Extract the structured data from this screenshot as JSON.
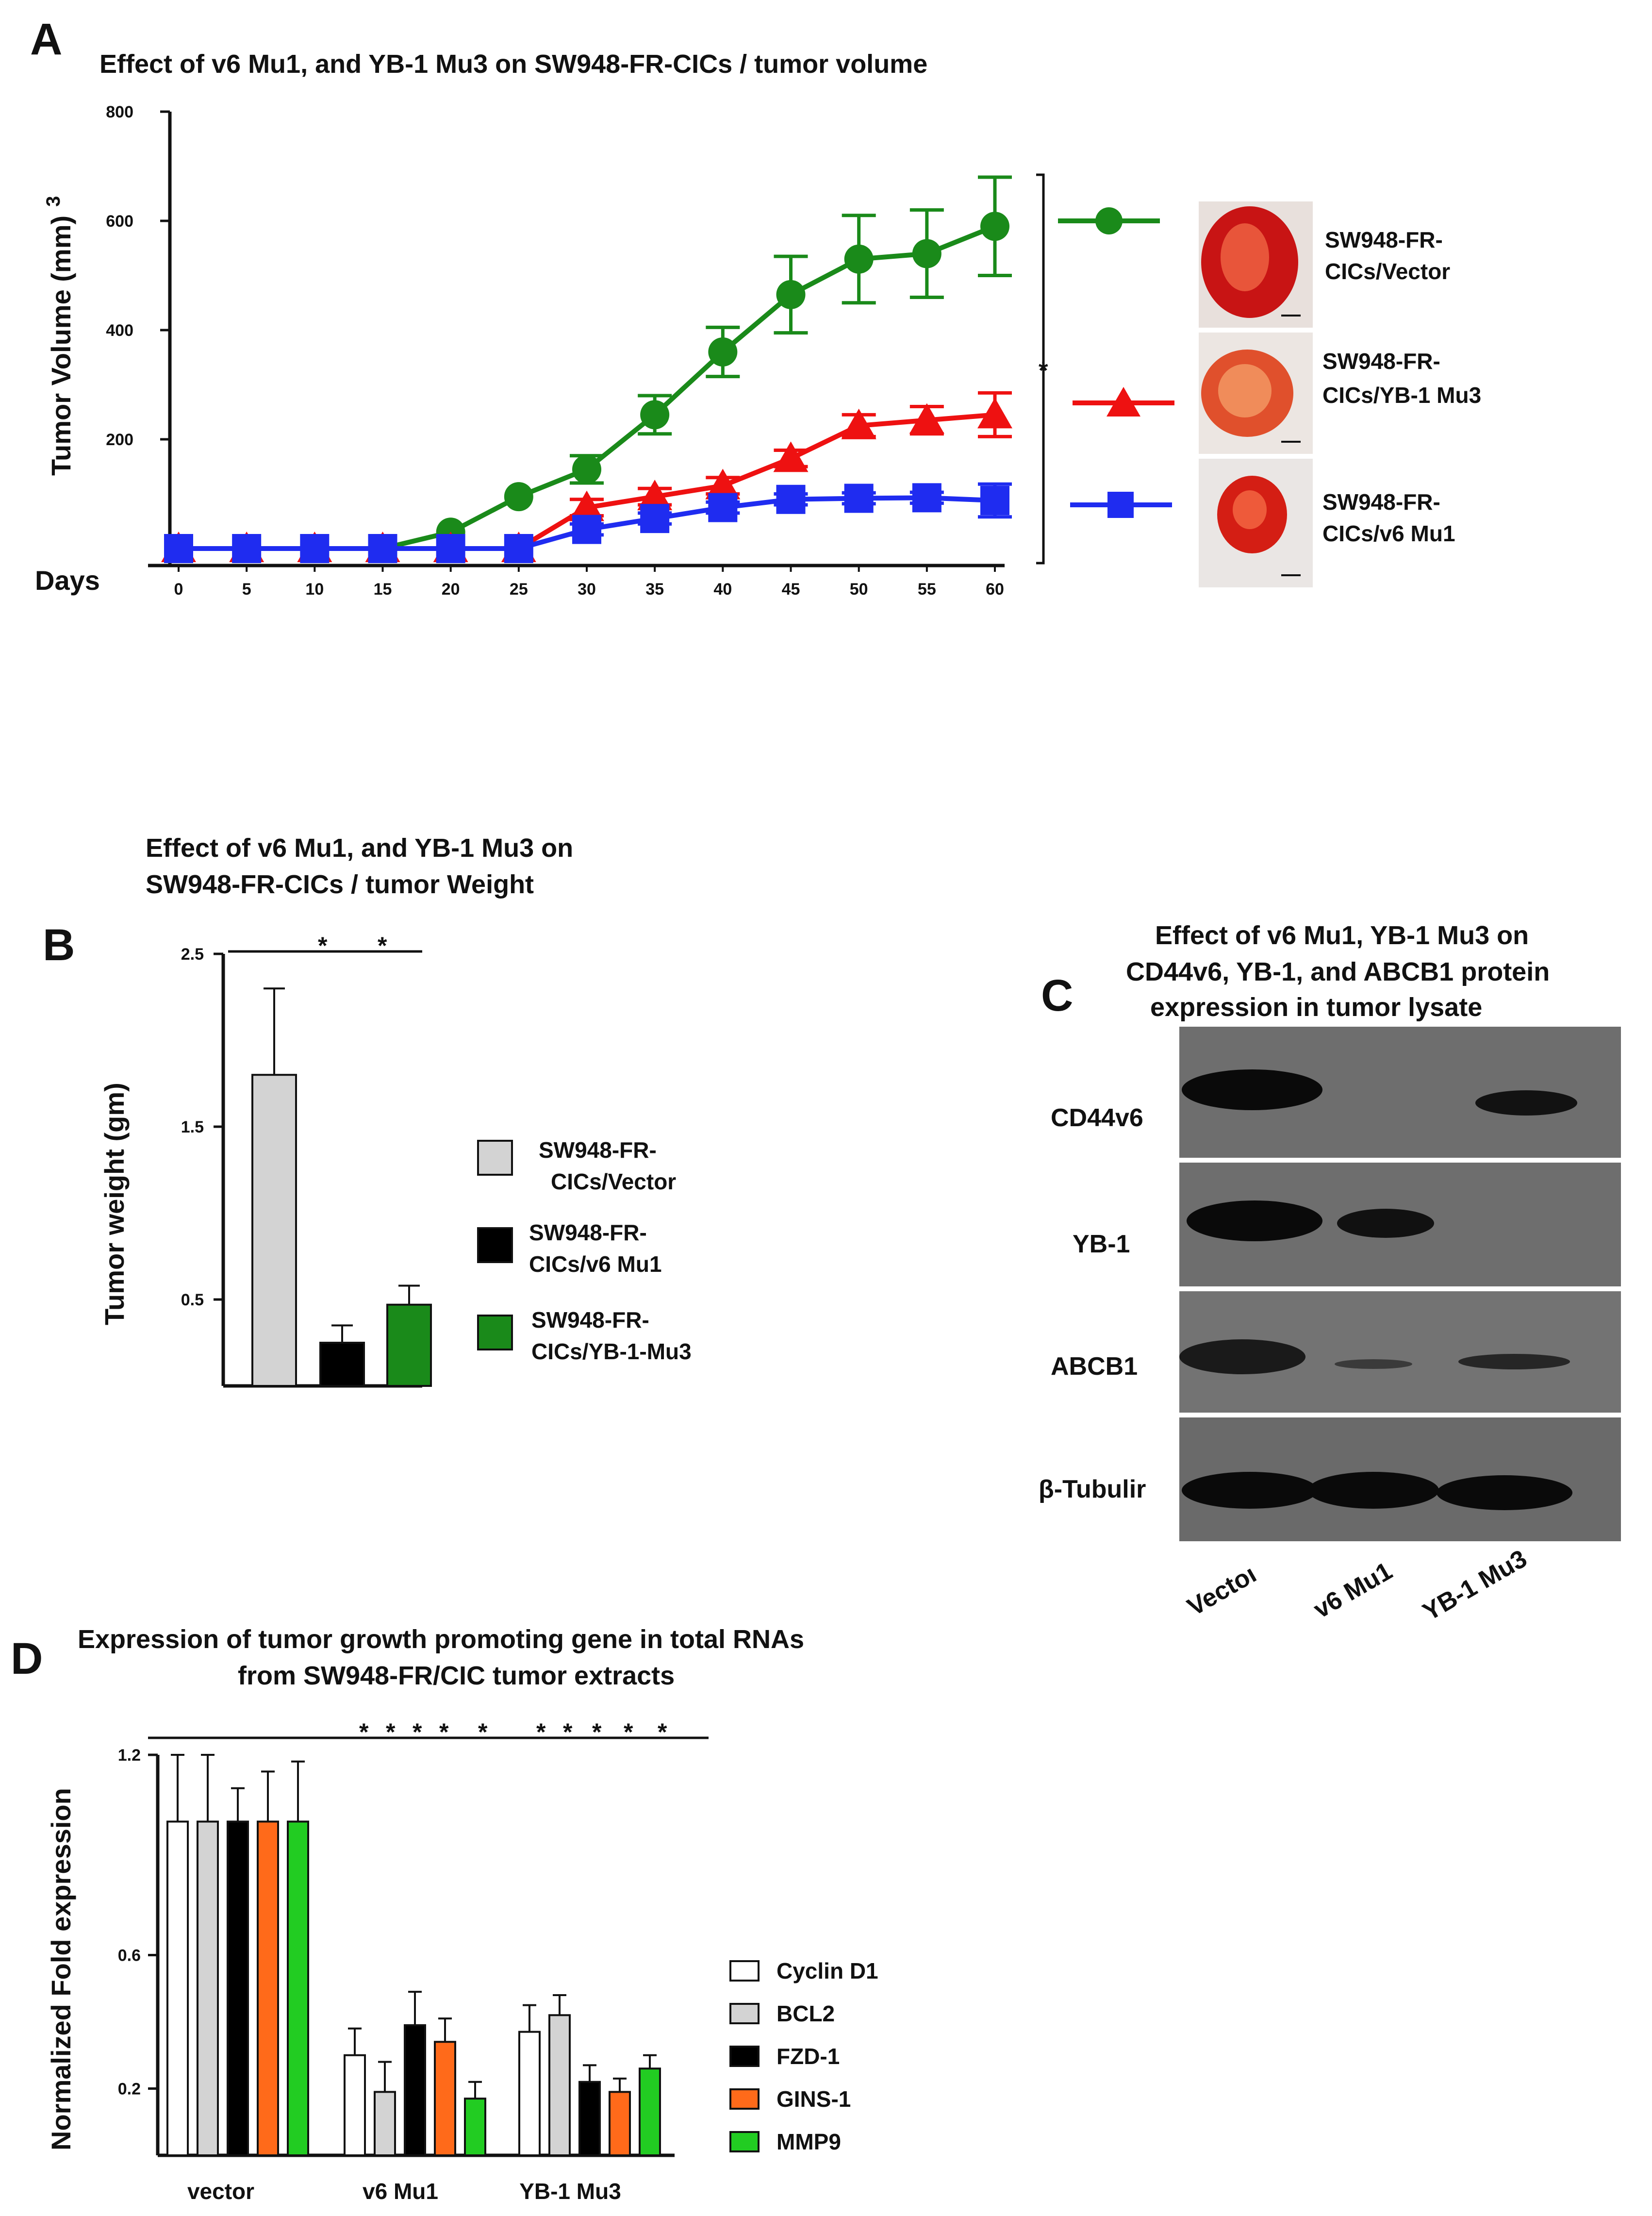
{
  "panels": {
    "a": "A",
    "b": "B",
    "c": "C",
    "d": "D"
  },
  "chart_data": [
    {
      "type": "line",
      "title": "Effect of v6 Mu1, and YB-1 Mu3 on SW948-FR-CICs  / tumor volume",
      "xlabel": "Days",
      "ylabel": "Tumor Volume (mm)",
      "ylabel_sup": "3",
      "x": [
        0,
        5,
        10,
        15,
        20,
        25,
        30,
        35,
        40,
        45,
        50,
        55,
        60
      ],
      "ytick_labels": [
        "200",
        "400",
        "600",
        "800"
      ],
      "ylim": [
        0,
        800
      ],
      "series": [
        {
          "name": "SW948-FR-CICs/Vector",
          "line1": "SW948-FR-",
          "line2": "CICs/Vector",
          "color": "#1a8a1a",
          "marker": "circle",
          "values": [
            0,
            0,
            0,
            0,
            30,
            95,
            145,
            245,
            360,
            465,
            530,
            540,
            590
          ],
          "errors": [
            0,
            0,
            0,
            0,
            0,
            0,
            25,
            35,
            45,
            70,
            80,
            80,
            90
          ]
        },
        {
          "name": "SW948-FR-CICs/YB-1 Mu3",
          "line1": "SW948-FR-",
          "line2": "CICs/YB-1  Mu3",
          "color": "#ee1111",
          "marker": "triangle",
          "values": [
            0,
            0,
            0,
            0,
            0,
            0,
            75,
            95,
            115,
            165,
            225,
            235,
            245
          ],
          "errors": [
            0,
            0,
            0,
            0,
            0,
            0,
            15,
            15,
            15,
            15,
            20,
            25,
            40
          ]
        },
        {
          "name": "SW948-FR-CICs/v6 Mu1",
          "line1": "SW948-FR-",
          "line2": "CICs/v6  Mu1",
          "color": "#1f2cf0",
          "marker": "square",
          "values": [
            0,
            0,
            0,
            0,
            0,
            0,
            35,
            55,
            75,
            90,
            92,
            93,
            88
          ],
          "errors": [
            0,
            0,
            0,
            0,
            0,
            0,
            10,
            10,
            10,
            10,
            10,
            10,
            30
          ]
        }
      ],
      "significance": "*"
    },
    {
      "type": "bar",
      "title_line1": "Effect  of v6 Mu1, and YB-1  Mu3 on",
      "title_line2": "SW948-FR-CICs  / tumor Weight",
      "ylabel": "Tumor weight (gm)",
      "ytick_labels": [
        "0.5",
        "1.5",
        "2.5"
      ],
      "ylim": [
        0,
        2.5
      ],
      "categories": [
        "SW948-FR-CICs/Vector",
        "SW948-FR-CICs/v6 Mu1",
        "SW948-FR-CICs/YB-1-Mu3"
      ],
      "values": [
        1.8,
        0.25,
        0.47
      ],
      "errors": [
        0.5,
        0.1,
        0.11
      ],
      "colors": [
        "#d3d3d3",
        "#000000",
        "#1a8a1a"
      ],
      "legend": [
        {
          "line1": "SW948-FR-",
          "line2": "CICs/Vector"
        },
        {
          "line1": "SW948-FR-",
          "line2": "CICs/v6  Mu1"
        },
        {
          "line1": "SW948-FR-",
          "line2": "CICs/YB-1-Mu3"
        }
      ],
      "stars": [
        "*",
        "*"
      ]
    },
    {
      "type": "bar",
      "title_line1": "Expression  of tumor growth promoting gene in total RNAs",
      "title_line2": "from  SW948-FR/CIC tumor extracts",
      "ylabel": "Normalized Fold expression",
      "ytick_labels": [
        "0.2",
        "0.6",
        "1.2"
      ],
      "ylim": [
        0,
        1.2
      ],
      "categories": [
        "vector",
        "v6 Mu1",
        "YB-1  Mu3"
      ],
      "series": [
        {
          "name": "Cyclin  D1",
          "color": "#ffffff",
          "values": [
            1.0,
            0.3,
            0.37
          ],
          "errors": [
            0.2,
            0.08,
            0.08
          ]
        },
        {
          "name": "BCL2",
          "color": "#d3d3d3",
          "values": [
            1.0,
            0.19,
            0.42
          ],
          "errors": [
            0.2,
            0.09,
            0.06
          ]
        },
        {
          "name": "FZD-1",
          "color": "#000000",
          "values": [
            1.0,
            0.39,
            0.22
          ],
          "errors": [
            0.1,
            0.1,
            0.05
          ]
        },
        {
          "name": "GINS-1",
          "color": "#ff6a1a",
          "values": [
            1.0,
            0.34,
            0.19
          ],
          "errors": [
            0.15,
            0.07,
            0.04
          ]
        },
        {
          "name": "MMP9",
          "color": "#22cc22",
          "values": [
            1.0,
            0.17,
            0.26
          ],
          "errors": [
            0.18,
            0.05,
            0.04
          ]
        }
      ],
      "stars": [
        "*",
        "*",
        "*",
        "*",
        "*",
        "*",
        "*",
        "*",
        "*",
        "*"
      ]
    }
  ],
  "western_blot": {
    "title_line1": "Effect  of v6 Mu1, YB-1  Mu3 on",
    "title_line2": "CD44v6, YB-1,  and ABCB1  protein",
    "title_line3": "expression  in tumor lysate",
    "proteins": [
      "CD44v6",
      "YB-1",
      "ABCB1",
      "β-Tubulir"
    ],
    "lanes": [
      "Vectoı",
      "v6 Mu1",
      "YB-1 Mu3"
    ]
  }
}
